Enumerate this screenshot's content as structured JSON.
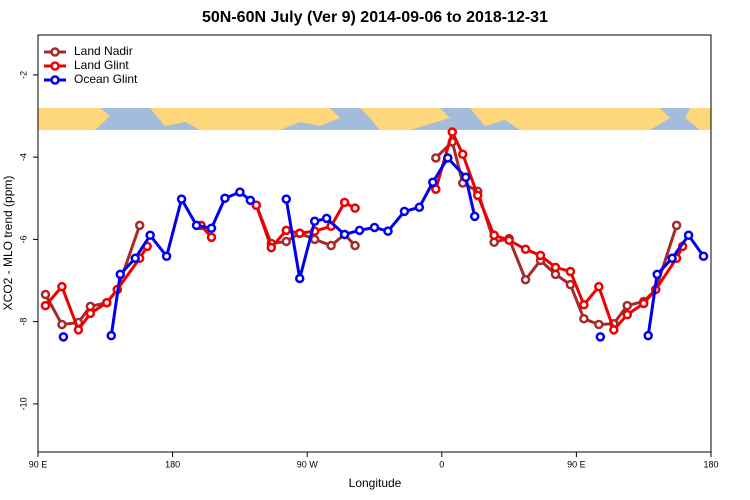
{
  "chart_data": {
    "type": "line",
    "title": "50N-60N July (Ver 9)   2014-09-06 to 2018-12-31",
    "x_label": "Longitude",
    "y_label": "XCO2 - MLO trend (ppm)",
    "xlim": [
      90,
      540
    ],
    "ylim": [
      -11.17,
      -1.03
    ],
    "xticks": [
      {
        "value": 90,
        "label": "90 E"
      },
      180,
      {
        "value": 270,
        "label": "90 W"
      },
      {
        "value": 360,
        "label": "0"
      },
      {
        "value": 450,
        "label": "90 E"
      },
      {
        "value": 540,
        "label": "180"
      }
    ],
    "yticks": [
      -2,
      -4,
      -6,
      -8,
      -10
    ],
    "legend": "top-left",
    "series": [
      {
        "name": "Land Nadir",
        "color": "#a52a2a",
        "x": [
          95,
          106,
          117,
          125,
          136,
          143,
          158,
          null,
          236,
          246,
          256,
          265,
          275,
          286,
          295,
          302,
          null,
          356,
          367,
          374,
          384,
          395,
          405,
          416,
          426,
          436,
          446,
          455,
          465,
          475,
          484,
          495,
          503,
          517
        ],
        "values": [
          -7.34,
          -8.07,
          -8.02,
          -7.63,
          -7.54,
          -7.22,
          -5.66,
          null,
          -5.17,
          -6.1,
          -6.05,
          -5.85,
          -6.0,
          -6.15,
          -5.88,
          -6.15,
          null,
          -4.02,
          -3.63,
          -4.63,
          -4.83,
          -6.07,
          -5.98,
          -6.98,
          -6.51,
          -6.85,
          -7.1,
          -7.93,
          -8.07,
          -8.05,
          -7.61,
          -7.51,
          -7.22,
          -5.66
        ]
      },
      {
        "name": "Land Glint",
        "color": "#ee0000",
        "x": [
          95,
          106,
          117,
          125,
          136,
          143,
          158,
          163,
          null,
          199,
          206,
          null,
          236,
          246,
          256,
          265,
          275,
          286,
          295,
          302,
          null,
          356,
          367,
          374,
          384,
          395,
          405,
          416,
          426,
          436,
          446,
          455,
          465,
          475,
          484,
          495,
          503,
          517,
          521
        ],
        "values": [
          -7.61,
          -7.15,
          -8.2,
          -7.8,
          -7.54,
          -7.22,
          -6.46,
          -6.17,
          null,
          -5.66,
          -5.95,
          null,
          -5.17,
          -6.2,
          -5.78,
          -5.85,
          -5.8,
          -5.68,
          -5.1,
          -5.24,
          null,
          -4.78,
          -3.39,
          -3.93,
          -4.93,
          -5.9,
          -6.02,
          -6.24,
          -6.39,
          -6.68,
          -6.78,
          -7.59,
          -7.15,
          -8.2,
          -7.83,
          -7.56,
          -7.22,
          -6.46,
          -6.17
        ]
      },
      {
        "name": "Ocean Glint",
        "color": "#0000ee",
        "x": [
          107,
          null,
          139,
          145,
          155,
          165,
          176,
          186,
          196,
          206,
          215,
          225,
          232,
          null,
          256,
          265,
          275,
          283,
          295,
          305,
          315,
          324,
          335,
          345,
          354,
          364,
          376,
          382,
          null,
          466,
          null,
          498,
          504,
          514,
          525,
          535
        ],
        "values": [
          -8.37,
          null,
          -8.34,
          -6.85,
          -6.46,
          -5.9,
          -6.41,
          -5.02,
          -5.66,
          -5.73,
          -5.0,
          -4.85,
          -5.05,
          null,
          -5.02,
          -6.95,
          -5.56,
          -5.49,
          -5.88,
          -5.78,
          -5.71,
          -5.8,
          -5.32,
          -5.22,
          -4.61,
          -4.02,
          -4.49,
          -5.44,
          null,
          -8.37,
          null,
          -8.34,
          -6.85,
          -6.46,
          -5.9,
          -6.41
        ]
      }
    ]
  }
}
